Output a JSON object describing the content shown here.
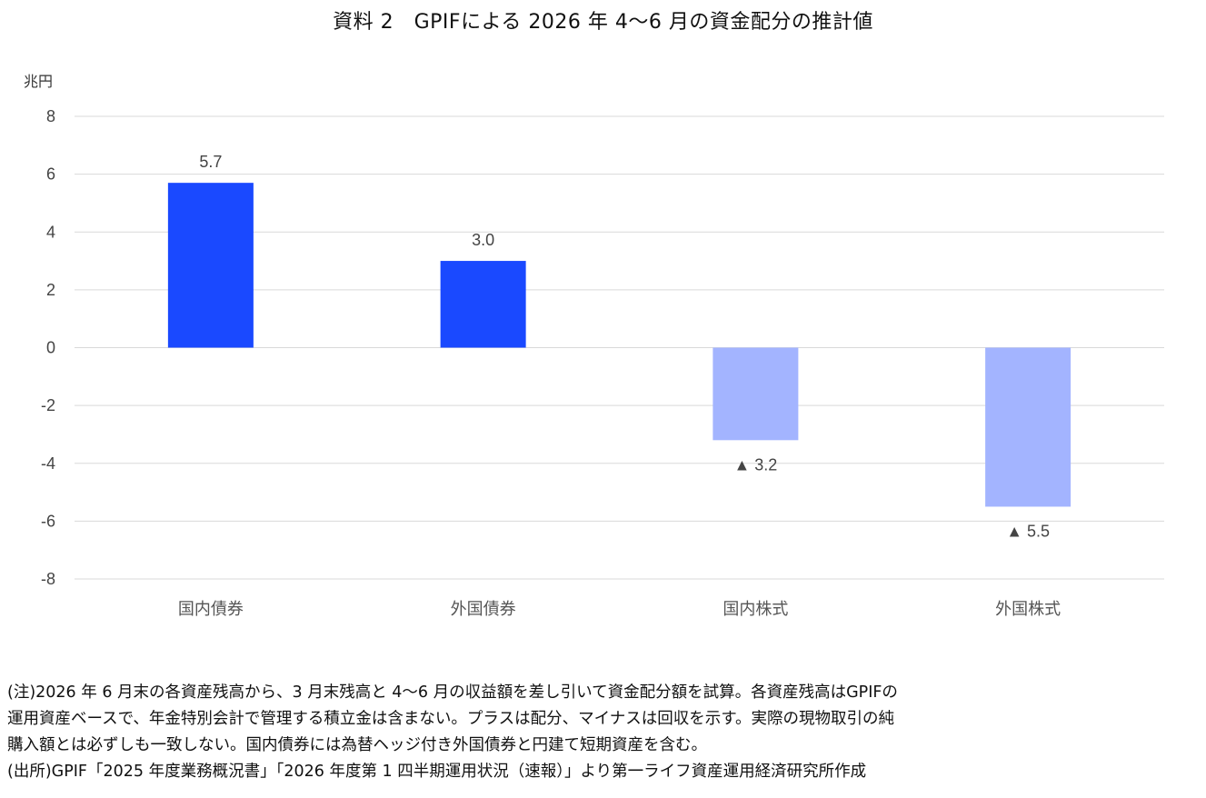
{
  "chart_data": {
    "type": "bar",
    "title": "資料 2　GPIFによる 2026 年 4〜6 月の資金配分の推計値",
    "unit": "兆円",
    "categories": [
      "国内債券",
      "外国債券",
      "国内株式",
      "外国株式"
    ],
    "values": [
      5.7,
      3.0,
      -3.2,
      -5.5
    ],
    "value_labels": [
      "5.7",
      "3.0",
      "▲ 3.2",
      "▲ 5.5"
    ],
    "ylim": [
      -8,
      8
    ],
    "yticks": [
      8,
      6,
      4,
      2,
      0,
      -2,
      -4,
      -6,
      -8
    ],
    "ytick_labels": [
      "8",
      "6",
      "4",
      "2",
      "0",
      "-2",
      "-4",
      "-6",
      "-8"
    ],
    "grid": true,
    "colors": {
      "positive": "#1A49FF",
      "negative": "#A3B4FF",
      "grid": "#D9D9D9"
    }
  },
  "notes": [
    "(注)2026 年 6 月末の各資産残高から、3 月末残高と 4〜6 月の収益額を差し引いて資金配分額を試算。各資産残高はGPIFの",
    "運用資産ベースで、年金特別会計で管理する積立金は含まない。プラスは配分、マイナスは回収を示す。実際の現物取引の純",
    "購入額とは必ずしも一致しない。国内債券には為替ヘッジ付き外国債券と円建て短期資産を含む。",
    "(出所)GPIF「2025 年度業務概況書」「2026 年度第 1 四半期運用状況（速報）」より第一ライフ資産運用経済研究所作成"
  ]
}
